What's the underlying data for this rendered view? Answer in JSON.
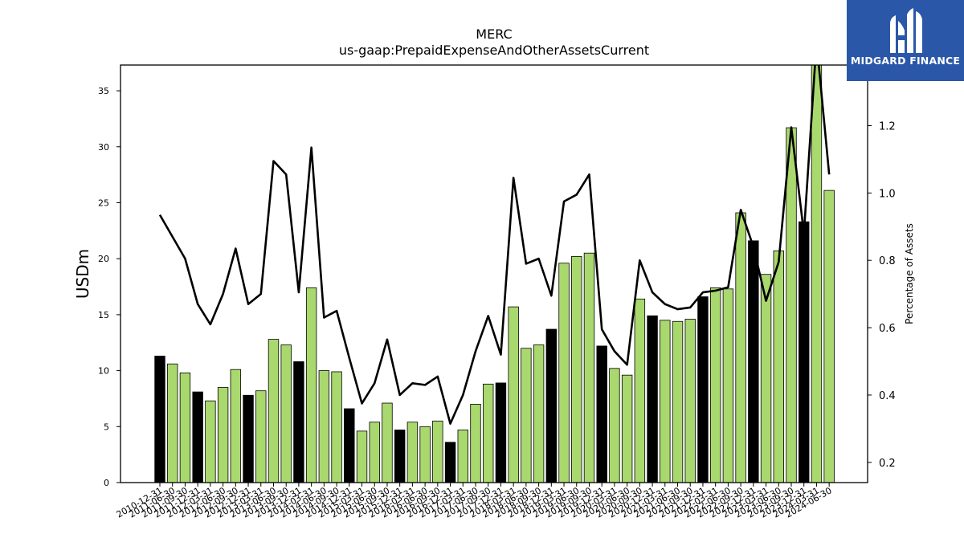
{
  "chart_data": {
    "type": "bar",
    "title": "MERC",
    "subtitle": "us-gaap:PrepaidExpenseAndOtherAssetsCurrent",
    "ylabel": "USDm",
    "y2label": "Percentage of Assets",
    "ylim": [
      0,
      37.3
    ],
    "y2lim": [
      0.14,
      1.38
    ],
    "yticks": [
      0,
      5,
      10,
      15,
      20,
      25,
      30,
      35
    ],
    "y2ticks": [
      0.2,
      0.4,
      0.6,
      0.8,
      1.0,
      1.2
    ],
    "colors": {
      "annual": "#000000",
      "quarterly": "#a9d86e",
      "line": "#000000"
    },
    "categories": [
      "2010-12-31",
      "2011-06-30",
      "2011-09-30",
      "2011-12-31",
      "2012-03-31",
      "2012-06-30",
      "2012-09-30",
      "2012-12-31",
      "2013-03-31",
      "2013-06-30",
      "2013-09-30",
      "2013-12-31",
      "2014-03-31",
      "2014-06-30",
      "2014-09-30",
      "2014-12-31",
      "2015-03-31",
      "2015-06-30",
      "2015-09-30",
      "2015-12-31",
      "2016-03-31",
      "2016-06-30",
      "2016-09-30",
      "2016-12-31",
      "2017-03-31",
      "2017-06-30",
      "2017-09-30",
      "2017-12-31",
      "2018-03-31",
      "2018-06-30",
      "2018-09-30",
      "2018-12-31",
      "2019-03-31",
      "2019-06-30",
      "2019-09-30",
      "2019-12-31",
      "2020-03-31",
      "2020-06-30",
      "2020-09-30",
      "2020-12-31",
      "2021-03-31",
      "2021-06-30",
      "2021-09-30",
      "2021-12-31",
      "2022-03-31",
      "2022-06-30",
      "2022-09-30",
      "2022-12-31",
      "2023-03-31",
      "2023-06-30",
      "2023-09-30",
      "2023-12-31",
      "2024-03-31",
      "2024-06-30"
    ],
    "series": [
      {
        "kind": "bar",
        "values": [
          11.3,
          10.6,
          9.8,
          8.1,
          7.3,
          8.5,
          10.1,
          7.8,
          8.2,
          12.8,
          12.3,
          10.8,
          17.4,
          10.0,
          9.9,
          6.6,
          4.6,
          5.4,
          7.1,
          4.7,
          5.4,
          5.0,
          5.5,
          3.6,
          4.7,
          7.0,
          8.8,
          8.9,
          15.7,
          12.0,
          12.3,
          13.7,
          19.6,
          20.2,
          20.5,
          12.2,
          10.2,
          9.6,
          16.4,
          14.9,
          14.5,
          14.4,
          14.6,
          16.6,
          17.4,
          17.3,
          24.1,
          21.6,
          18.6,
          20.7,
          31.7,
          23.3,
          37.5,
          26.1
        ],
        "annual": [
          true,
          false,
          false,
          true,
          false,
          false,
          false,
          true,
          false,
          false,
          false,
          true,
          false,
          false,
          false,
          true,
          false,
          false,
          false,
          true,
          false,
          false,
          false,
          true,
          false,
          false,
          false,
          true,
          false,
          false,
          false,
          true,
          false,
          false,
          false,
          true,
          false,
          false,
          false,
          true,
          false,
          false,
          false,
          true,
          false,
          false,
          false,
          true,
          false,
          false,
          false,
          true,
          false,
          false
        ]
      },
      {
        "kind": "line",
        "axis": "right",
        "values": [
          0.935,
          0.87,
          0.805,
          0.67,
          0.61,
          0.7,
          0.835,
          0.67,
          0.7,
          1.095,
          1.055,
          0.705,
          1.135,
          0.63,
          0.65,
          0.51,
          0.375,
          0.435,
          0.565,
          0.4,
          0.435,
          0.43,
          0.455,
          0.315,
          0.4,
          0.53,
          0.635,
          0.52,
          1.045,
          0.79,
          0.805,
          0.695,
          0.975,
          0.995,
          1.055,
          0.595,
          0.53,
          0.49,
          0.8,
          0.705,
          0.67,
          0.655,
          0.66,
          0.705,
          0.71,
          0.72,
          0.95,
          0.84,
          0.68,
          0.795,
          1.195,
          0.88,
          1.45,
          1.055
        ]
      }
    ]
  },
  "logo": {
    "text": "MIDGARD FINANCE"
  }
}
